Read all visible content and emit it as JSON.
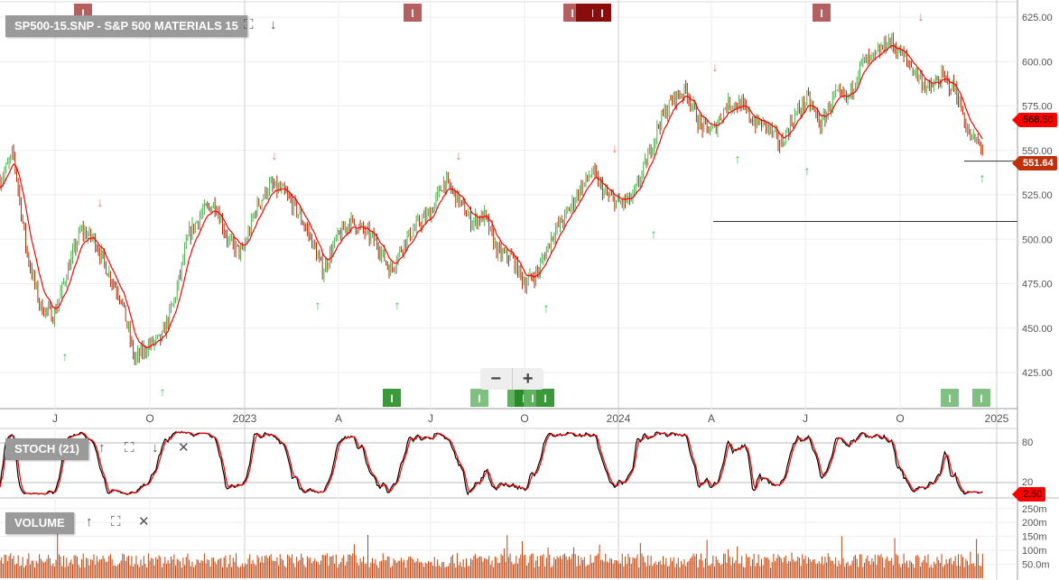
{
  "header": {
    "title": "SP500-15.SNP - S&P 500 MATERIALS 15"
  },
  "stoch_panel": {
    "title": "STOCH (21)",
    "last_value": "2.50"
  },
  "volume_panel": {
    "title": "VOLUME"
  },
  "zoom": {
    "minus": "−",
    "plus": "+"
  },
  "icons": {
    "expand": "fullscreen-icon",
    "down": "arrow-down-icon",
    "up": "arrow-up-icon",
    "close": "close-icon"
  },
  "colors": {
    "up_bar": "#4caf50",
    "down_bar": "#b22a00",
    "ma": "#ff0000",
    "stoch_k": "#000000",
    "stoch_d": "#ff0000",
    "volume": "#c0400a",
    "sell_marker": "#b56060",
    "buy_marker": "#3a9a3a",
    "last_price_tag": "#ff0000",
    "close_tag": "#c0300a"
  },
  "chart_data": {
    "type": "candlestick-ohlc",
    "title": "SP500-15.SNP - S&P 500 MATERIALS 15",
    "x_range": [
      "2022-04",
      "2024-12"
    ],
    "x_ticks": [
      "J",
      "O",
      "2023",
      "A",
      "J",
      "O",
      "2024",
      "A",
      "J",
      "O",
      "2025"
    ],
    "y_ticks": [
      "425.00",
      "450.00",
      "475.00",
      "500.00",
      "525.00",
      "550.00",
      "575.00",
      "600.00",
      "625.00"
    ],
    "ylim": [
      415,
      630
    ],
    "close_approx_biweekly": [
      533,
      548,
      492,
      462,
      457,
      482,
      505,
      500,
      482,
      467,
      432,
      440,
      444,
      467,
      502,
      515,
      520,
      498,
      492,
      517,
      530,
      527,
      517,
      502,
      482,
      500,
      510,
      505,
      498,
      482,
      498,
      508,
      515,
      533,
      523,
      510,
      513,
      492,
      490,
      475,
      482,
      502,
      513,
      527,
      538,
      525,
      520,
      523,
      543,
      566,
      579,
      584,
      564,
      561,
      576,
      576,
      566,
      564,
      553,
      569,
      579,
      564,
      581,
      579,
      599,
      602,
      612,
      604,
      594,
      584,
      591,
      584,
      558,
      552
    ],
    "last_price_labels": [
      "568.50",
      "551.64"
    ],
    "horizontal_lines": [
      510,
      544
    ],
    "stoch": {
      "period": 21,
      "y_ticks": [
        "80",
        "20"
      ],
      "last": "2.50"
    },
    "volume": {
      "y_ticks": [
        "250m",
        "200m",
        "150m",
        "100m",
        "50.0m"
      ],
      "typical_m": 75
    },
    "sell_signals": [
      "2022-05",
      "2022-08",
      "2023-02",
      "2023-06",
      "2023-12",
      "2024-04",
      "2024-10"
    ],
    "buy_signals": [
      "2022-07",
      "2022-10",
      "2023-03",
      "2023-05",
      "2023-10",
      "2024-02",
      "2024-04",
      "2024-07",
      "2024-12"
    ],
    "marker_label": "I"
  }
}
